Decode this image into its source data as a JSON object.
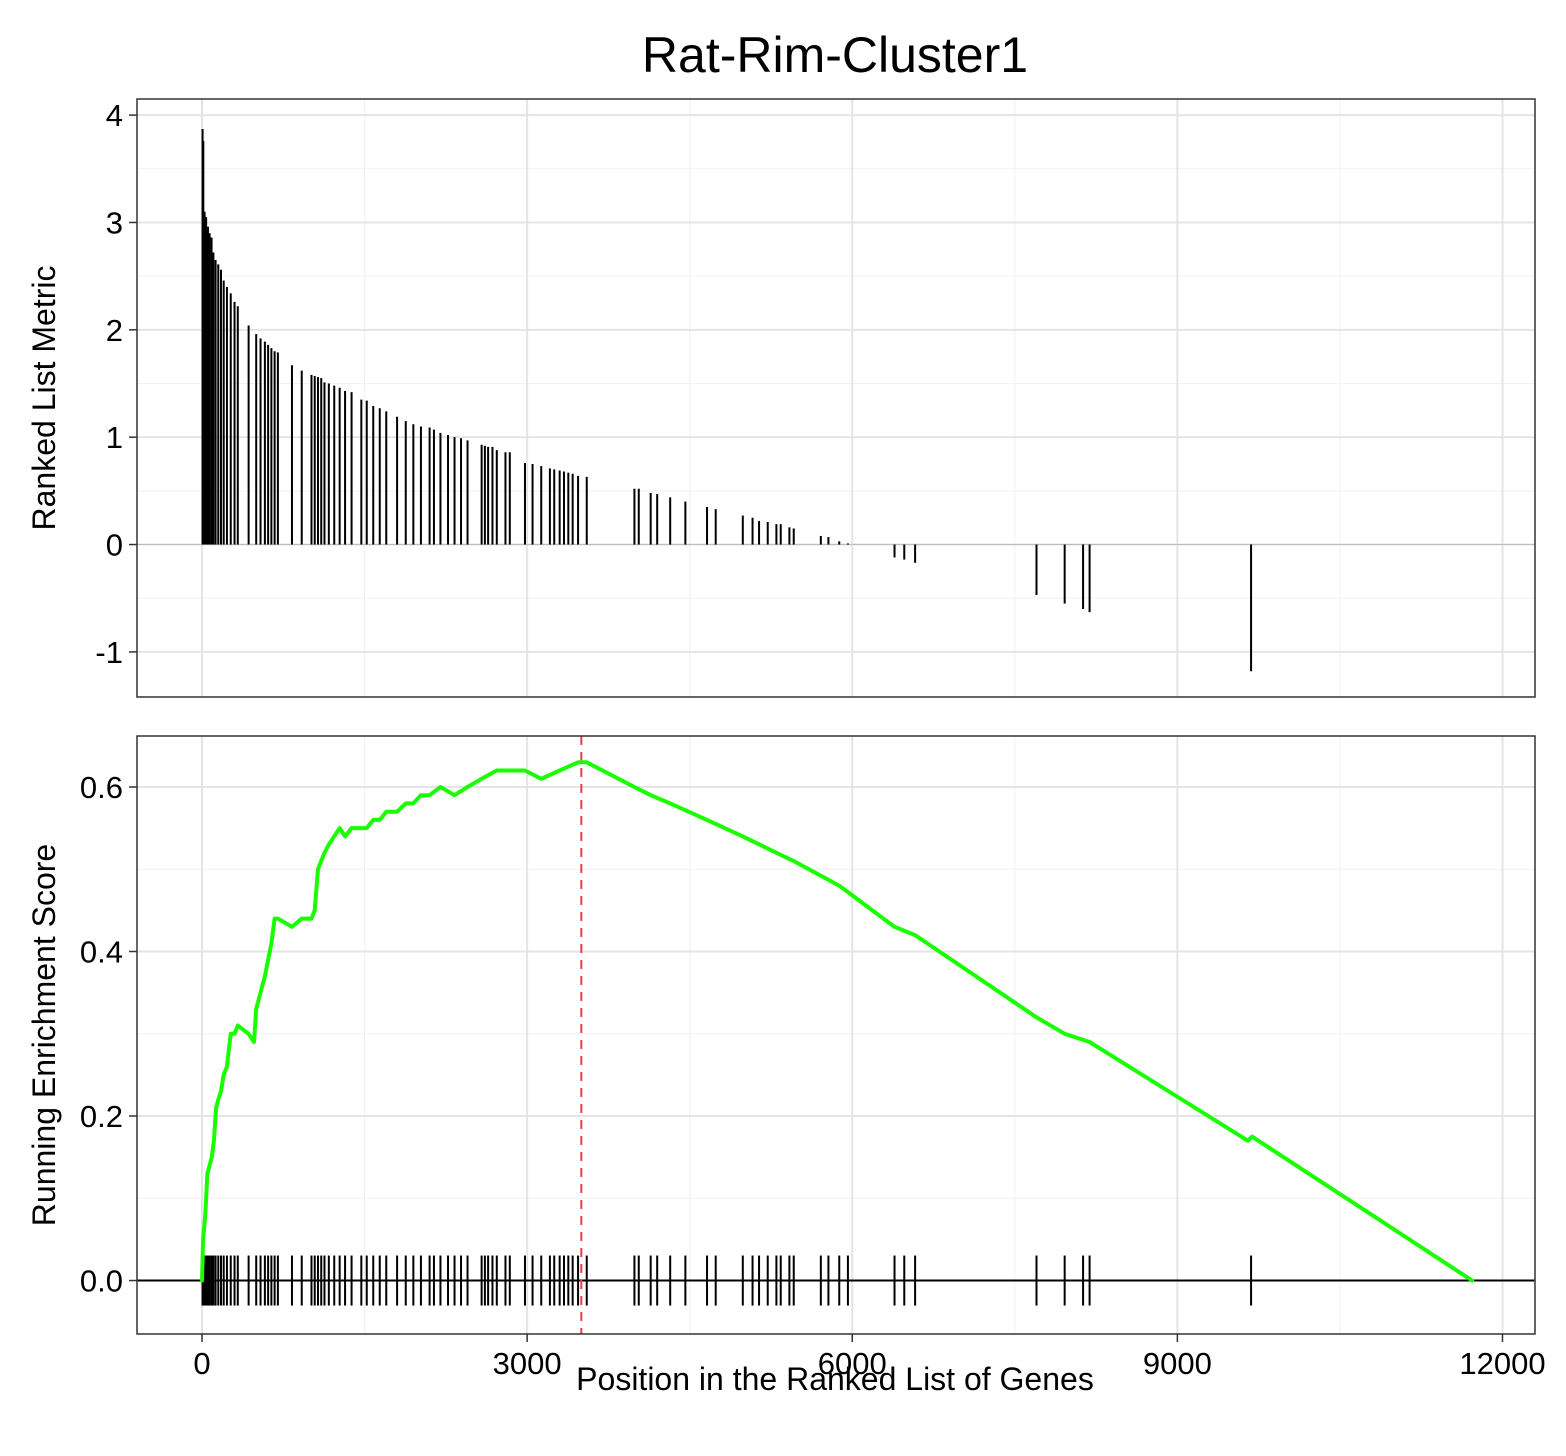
{
  "title": "Rat-Rim-Cluster1",
  "colors": {
    "running_score_line": "#1aff00",
    "peak_marker": "#f0384f",
    "bars": "#000000",
    "grid_major": "#e4e4e4",
    "grid_minor": "#f2f2f2",
    "panel_border": "#333333"
  },
  "chart_data": [
    {
      "type": "bar",
      "panel": "top",
      "title": "Rat-Rim-Cluster1",
      "ylabel": "Ranked List Metric",
      "xlabel": "",
      "xlim": [
        -600,
        12300
      ],
      "ylim": [
        -1.42,
        4.15
      ],
      "y_ticks": [
        -1,
        0,
        1,
        2,
        3,
        4
      ],
      "y_tick_labels": [
        "-1",
        "0",
        "1",
        "2",
        "3",
        "4"
      ],
      "x_ticks": [
        0,
        3000,
        6000,
        9000,
        12000
      ],
      "grid": true,
      "positions": [
        5,
        12,
        24,
        38,
        55,
        70,
        88,
        105,
        125,
        150,
        175,
        200,
        230,
        265,
        300,
        330,
        430,
        500,
        540,
        580,
        610,
        640,
        670,
        700,
        830,
        920,
        1010,
        1040,
        1070,
        1100,
        1130,
        1170,
        1220,
        1270,
        1320,
        1380,
        1470,
        1520,
        1580,
        1640,
        1700,
        1800,
        1880,
        1950,
        2020,
        2100,
        2140,
        2200,
        2270,
        2330,
        2390,
        2450,
        2580,
        2610,
        2640,
        2680,
        2720,
        2800,
        2840,
        2980,
        3050,
        3130,
        3210,
        3250,
        3300,
        3340,
        3380,
        3420,
        3470,
        3550,
        3990,
        4030,
        4140,
        4200,
        4320,
        4460,
        4660,
        4740,
        4990,
        5080,
        5140,
        5220,
        5300,
        5340,
        5420,
        5460,
        5710,
        5780,
        5880,
        5960,
        6390,
        6480,
        6580,
        7700,
        7960,
        8130,
        8190,
        9680
      ],
      "values": [
        3.87,
        3.76,
        3.1,
        3.05,
        2.96,
        2.9,
        2.86,
        2.72,
        2.65,
        2.61,
        2.56,
        2.46,
        2.4,
        2.34,
        2.26,
        2.22,
        2.04,
        1.96,
        1.92,
        1.89,
        1.86,
        1.83,
        1.8,
        1.79,
        1.67,
        1.62,
        1.58,
        1.57,
        1.56,
        1.55,
        1.51,
        1.5,
        1.48,
        1.46,
        1.43,
        1.42,
        1.35,
        1.34,
        1.29,
        1.27,
        1.24,
        1.19,
        1.15,
        1.12,
        1.1,
        1.09,
        1.07,
        1.04,
        1.02,
        1.0,
        0.99,
        0.97,
        0.93,
        0.92,
        0.91,
        0.91,
        0.88,
        0.86,
        0.86,
        0.76,
        0.75,
        0.73,
        0.71,
        0.7,
        0.69,
        0.68,
        0.67,
        0.66,
        0.64,
        0.63,
        0.52,
        0.52,
        0.48,
        0.47,
        0.44,
        0.4,
        0.35,
        0.33,
        0.27,
        0.25,
        0.22,
        0.21,
        0.19,
        0.19,
        0.16,
        0.15,
        0.08,
        0.07,
        0.03,
        0.01,
        -0.12,
        -0.14,
        -0.17,
        -0.47,
        -0.55,
        -0.6,
        -0.63,
        -1.18
      ]
    },
    {
      "type": "line",
      "panel": "bottom",
      "ylabel": "Running Enrichment Score",
      "xlabel": "Position in the Ranked List of Genes",
      "xlim": [
        -600,
        12300
      ],
      "ylim": [
        -0.065,
        0.662
      ],
      "y_ticks": [
        0.0,
        0.2,
        0.4,
        0.6
      ],
      "y_tick_labels": [
        "0.0",
        "0.2",
        "0.4",
        "0.6"
      ],
      "x_ticks": [
        0,
        3000,
        6000,
        9000,
        12000
      ],
      "x_tick_labels": [
        "0",
        "3000",
        "6000",
        "9000",
        "12000"
      ],
      "grid": true,
      "series": [
        {
          "x": [
            0,
            10,
            30,
            50,
            70,
            90,
            110,
            130,
            150,
            175,
            200,
            230,
            265,
            300,
            330,
            430,
            480,
            500,
            540,
            580,
            610,
            640,
            670,
            700,
            830,
            920,
            1010,
            1040,
            1070,
            1100,
            1130,
            1170,
            1220,
            1270,
            1320,
            1380,
            1470,
            1520,
            1580,
            1640,
            1700,
            1800,
            1880,
            1950,
            2020,
            2100,
            2200,
            2330,
            2450,
            2580,
            2720,
            2840,
            2980,
            3130,
            3300,
            3470,
            3550,
            3990,
            4140,
            4320,
            4660,
            4990,
            5300,
            5460,
            5880,
            6390,
            6580,
            7700,
            7960,
            8190,
            9650,
            9690,
            11720
          ],
          "y": [
            0.0,
            0.05,
            0.08,
            0.13,
            0.14,
            0.15,
            0.17,
            0.21,
            0.22,
            0.23,
            0.25,
            0.26,
            0.3,
            0.3,
            0.31,
            0.3,
            0.29,
            0.33,
            0.35,
            0.37,
            0.39,
            0.41,
            0.44,
            0.44,
            0.43,
            0.44,
            0.44,
            0.45,
            0.5,
            0.51,
            0.52,
            0.53,
            0.54,
            0.55,
            0.54,
            0.55,
            0.55,
            0.55,
            0.56,
            0.56,
            0.57,
            0.57,
            0.58,
            0.58,
            0.59,
            0.59,
            0.6,
            0.59,
            0.6,
            0.61,
            0.62,
            0.62,
            0.62,
            0.61,
            0.62,
            0.63,
            0.63,
            0.6,
            0.59,
            0.58,
            0.56,
            0.54,
            0.52,
            0.51,
            0.48,
            0.43,
            0.42,
            0.32,
            0.3,
            0.29,
            0.17,
            0.175,
            0.0
          ]
        }
      ],
      "hit_positions": [
        5,
        12,
        24,
        38,
        55,
        70,
        88,
        105,
        125,
        150,
        175,
        200,
        230,
        265,
        300,
        330,
        430,
        500,
        540,
        580,
        610,
        640,
        670,
        700,
        830,
        920,
        1010,
        1040,
        1070,
        1100,
        1130,
        1170,
        1220,
        1270,
        1320,
        1380,
        1470,
        1520,
        1580,
        1640,
        1700,
        1800,
        1880,
        1950,
        2020,
        2100,
        2140,
        2200,
        2270,
        2330,
        2390,
        2450,
        2580,
        2610,
        2640,
        2680,
        2720,
        2800,
        2840,
        2980,
        3050,
        3130,
        3210,
        3250,
        3300,
        3340,
        3380,
        3420,
        3470,
        3550,
        3990,
        4030,
        4140,
        4200,
        4320,
        4460,
        4660,
        4740,
        4990,
        5080,
        5140,
        5220,
        5300,
        5340,
        5420,
        5460,
        5710,
        5780,
        5880,
        5960,
        6390,
        6480,
        6580,
        7700,
        7960,
        8130,
        8190,
        9680
      ],
      "peak_position": 3500,
      "peak_score": 0.63
    }
  ]
}
